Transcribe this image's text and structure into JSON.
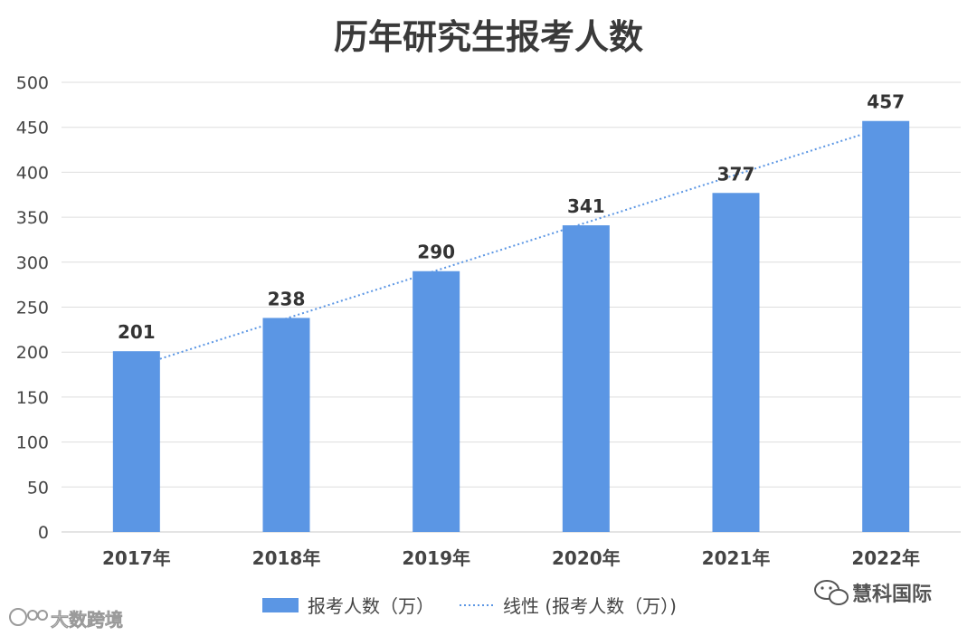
{
  "chart_data": {
    "type": "bar",
    "title": "历年研究生报考人数",
    "categories": [
      "2017年",
      "2018年",
      "2019年",
      "2020年",
      "2021年",
      "2022年"
    ],
    "series": [
      {
        "name": "报考人数（万）",
        "values": [
          201,
          238,
          290,
          341,
          377,
          457
        ],
        "color": "#5b96e4"
      }
    ],
    "trendline": {
      "name": "线性 (报考人数（万）)",
      "type": "linear",
      "color": "#5b96e4",
      "style": "dotted"
    },
    "ylim": [
      0,
      500
    ],
    "yticks": [
      0,
      50,
      100,
      150,
      200,
      250,
      300,
      350,
      400,
      450,
      500
    ],
    "grid": true,
    "legend_position": "bottom",
    "data_labels": true
  },
  "watermarks": {
    "right": "慧科国际",
    "left": "大数跨境"
  }
}
